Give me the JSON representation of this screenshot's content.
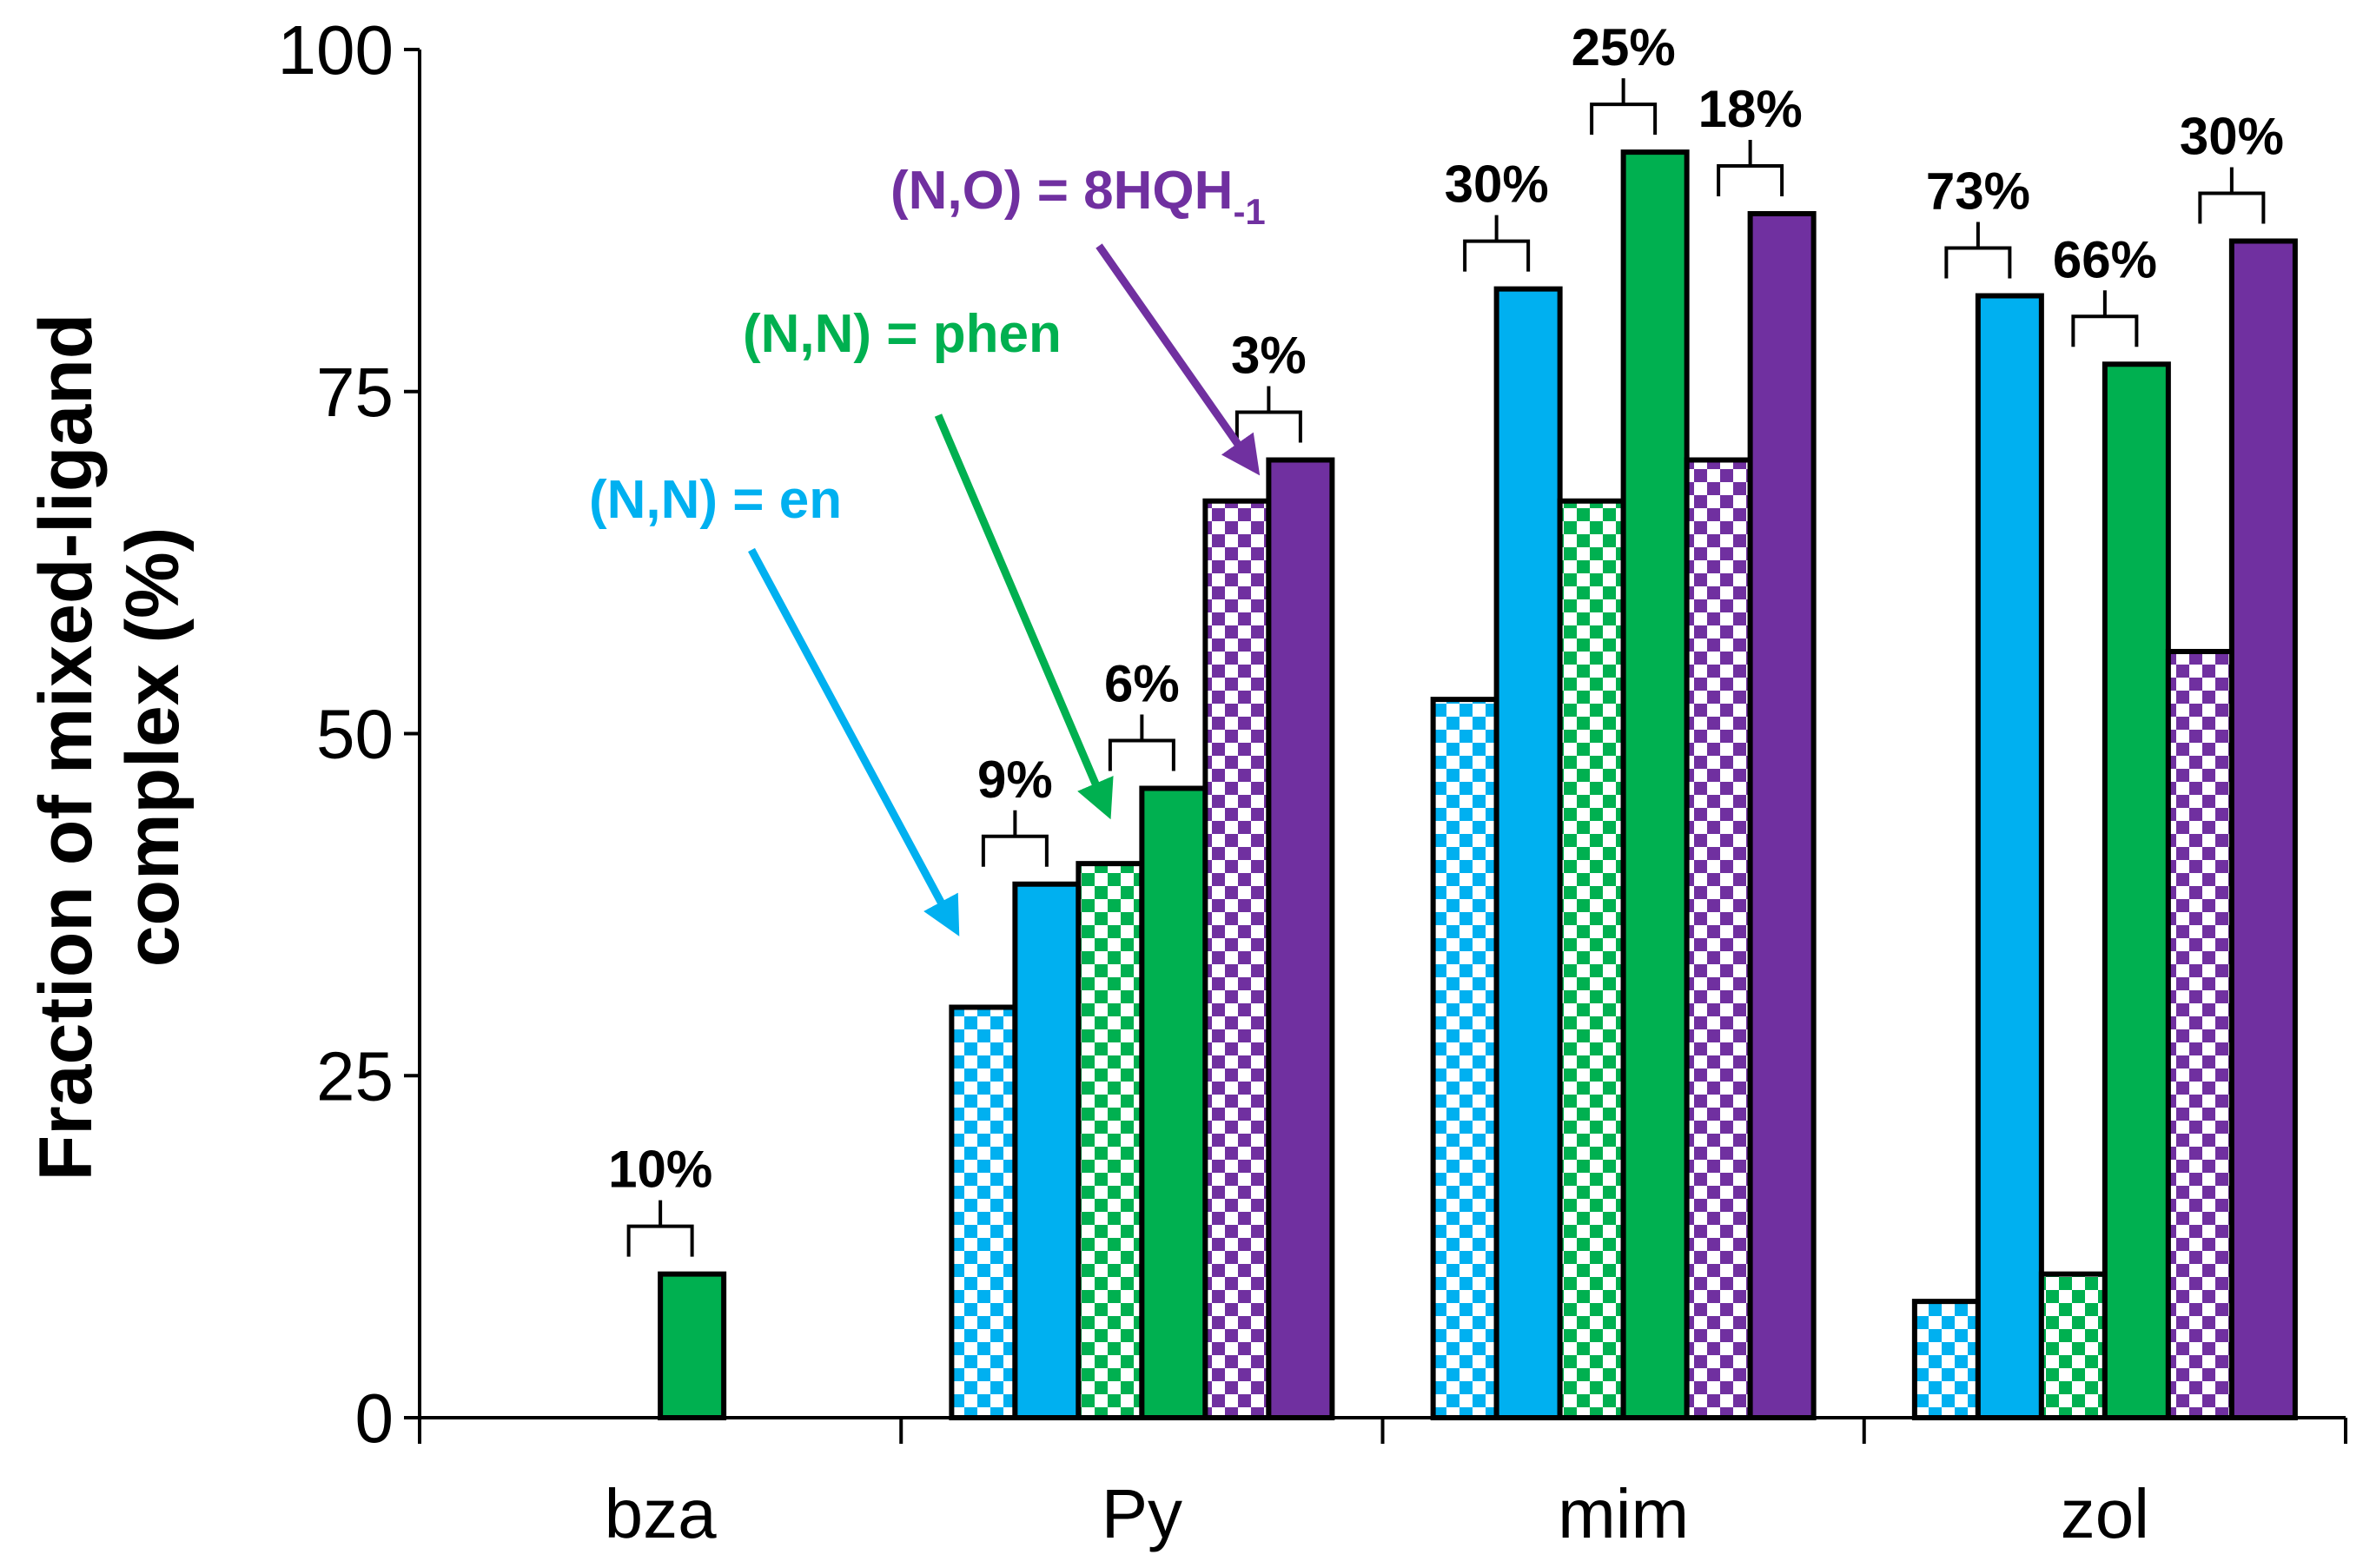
{
  "chart_data": {
    "type": "bar",
    "title": "",
    "xlabel": "",
    "ylabel": "Fraction of mixed-ligand complex (%)",
    "ylabel_lines": [
      "Fraction of mixed-ligand",
      "complex (%)"
    ],
    "ylim": [
      0,
      100
    ],
    "yticks": [
      "0",
      "25",
      "50",
      "75",
      "100"
    ],
    "categories": [
      "bza",
      "Py",
      "mim",
      "zol"
    ],
    "colors": {
      "en": "#00b0f0",
      "phen": "#00b050",
      "hq": "#7030a0"
    },
    "series": [
      {
        "name": "(N,N) = en, checkered",
        "ligand": "en",
        "pattern": "checkered",
        "values": [
          null,
          30,
          52.5,
          8.5
        ]
      },
      {
        "name": "(N,N) = en",
        "ligand": "en",
        "pattern": "solid",
        "values": [
          null,
          39,
          82.5,
          82
        ]
      },
      {
        "name": "(N,N) = phen, checkered",
        "ligand": "phen",
        "pattern": "checkered",
        "values": [
          null,
          40.5,
          67,
          10.5
        ]
      },
      {
        "name": "(N,N) = phen",
        "ligand": "phen",
        "pattern": "solid",
        "values": [
          10.5,
          46,
          92.5,
          77
        ]
      },
      {
        "name": "(N,O) = 8HQH-1, checkered",
        "ligand": "hq",
        "pattern": "checkered",
        "values": [
          null,
          67,
          70,
          56
        ]
      },
      {
        "name": "(N,O) = 8HQH-1",
        "ligand": "hq",
        "pattern": "solid",
        "values": [
          null,
          70,
          88,
          86
        ]
      }
    ],
    "percent_annotations": [
      {
        "category": "bza",
        "pair": "phen",
        "text": "10%"
      },
      {
        "category": "Py",
        "pair": "en",
        "text": "9%"
      },
      {
        "category": "Py",
        "pair": "phen",
        "text": "6%"
      },
      {
        "category": "Py",
        "pair": "hq",
        "text": "3%"
      },
      {
        "category": "mim",
        "pair": "en",
        "text": "30%"
      },
      {
        "category": "mim",
        "pair": "phen",
        "text": "25%"
      },
      {
        "category": "mim",
        "pair": "hq",
        "text": "18%"
      },
      {
        "category": "zol",
        "pair": "en",
        "text": "73%"
      },
      {
        "category": "zol",
        "pair": "phen",
        "text": "66%"
      },
      {
        "category": "zol",
        "pair": "hq",
        "text": "30%"
      }
    ],
    "legend_annotations": [
      {
        "ligand": "en",
        "text": "(N,N) = en"
      },
      {
        "ligand": "phen",
        "text": "(N,N) = phen"
      },
      {
        "ligand": "hq",
        "text": "(N,O) = 8HQH",
        "subscript": "-1"
      }
    ]
  }
}
